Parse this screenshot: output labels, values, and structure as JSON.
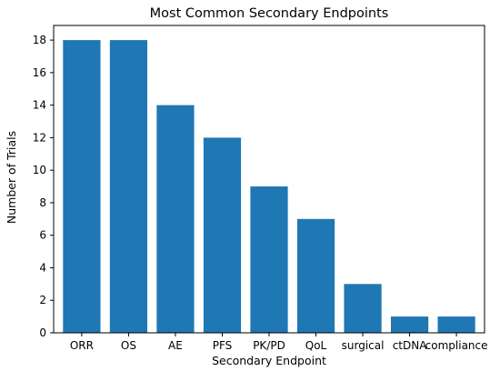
{
  "chart_data": {
    "type": "bar",
    "title": "Most Common Secondary Endpoints",
    "xlabel": "Secondary Endpoint",
    "ylabel": "Number of Trials",
    "categories": [
      "ORR",
      "OS",
      "AE",
      "PFS",
      "PK/PD",
      "QoL",
      "surgical",
      "ctDNA",
      "compliance"
    ],
    "values": [
      18,
      18,
      14,
      12,
      9,
      7,
      3,
      1,
      1
    ],
    "ylim": [
      0,
      18.9
    ],
    "yticks": [
      0,
      2,
      4,
      6,
      8,
      10,
      12,
      14,
      16,
      18
    ],
    "grid": false,
    "bar_color": "#1f77b4"
  }
}
